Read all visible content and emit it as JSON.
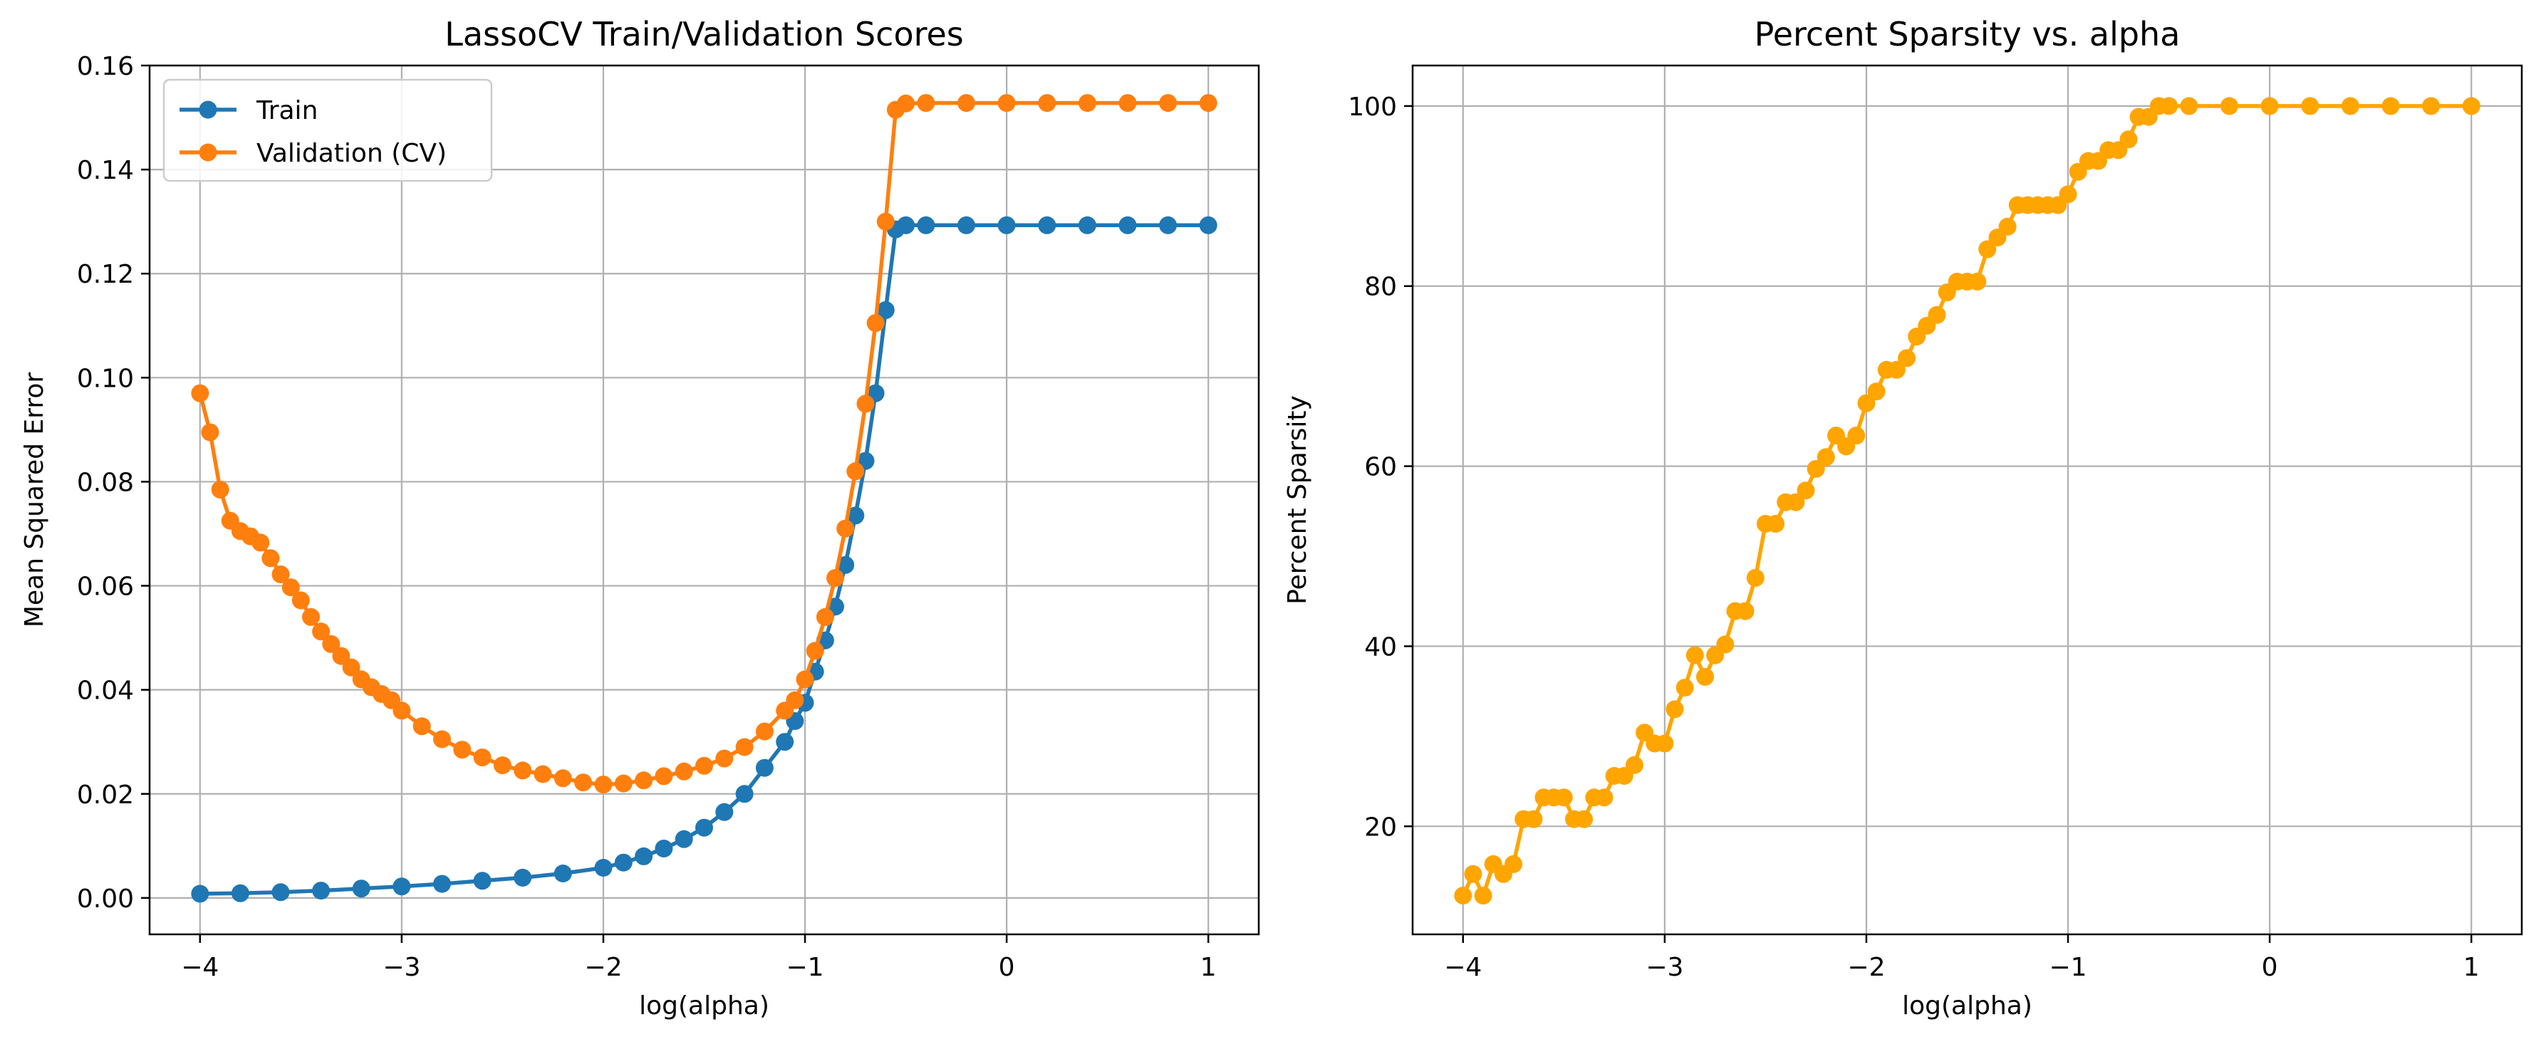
{
  "chart_data": [
    {
      "type": "line",
      "title": "LassoCV Train/Validation Scores",
      "xlabel": "log(alpha)",
      "ylabel": "Mean Squared Error",
      "xlim": [
        -4.25,
        1.25
      ],
      "ylim": [
        -0.007,
        0.16
      ],
      "xticks": [
        -4,
        -3,
        -2,
        -1,
        0,
        1
      ],
      "xtick_labels": [
        "−4",
        "−3",
        "−2",
        "−1",
        "0",
        "1"
      ],
      "yticks": [
        0.0,
        0.02,
        0.04,
        0.06,
        0.08,
        0.1,
        0.12,
        0.14,
        0.16
      ],
      "ytick_labels": [
        "0.00",
        "0.02",
        "0.04",
        "0.06",
        "0.08",
        "0.10",
        "0.12",
        "0.14",
        "0.16"
      ],
      "grid": true,
      "legend_position": "upper-left",
      "series": [
        {
          "name": "Train",
          "color": "#1f77b4",
          "marker": "circle",
          "points": [
            [
              -4.0,
              0.0008
            ],
            [
              -3.8,
              0.0009
            ],
            [
              -3.6,
              0.0011
            ],
            [
              -3.4,
              0.0014
            ],
            [
              -3.2,
              0.0018
            ],
            [
              -3.0,
              0.0022
            ],
            [
              -2.8,
              0.0027
            ],
            [
              -2.6,
              0.0033
            ],
            [
              -2.4,
              0.0039
            ],
            [
              -2.2,
              0.0047
            ],
            [
              -2.0,
              0.0058
            ],
            [
              -1.9,
              0.0068
            ],
            [
              -1.8,
              0.008
            ],
            [
              -1.7,
              0.0095
            ],
            [
              -1.6,
              0.0113
            ],
            [
              -1.5,
              0.0135
            ],
            [
              -1.4,
              0.0165
            ],
            [
              -1.3,
              0.02
            ],
            [
              -1.2,
              0.025
            ],
            [
              -1.1,
              0.03
            ],
            [
              -1.05,
              0.034
            ],
            [
              -1.0,
              0.0375
            ],
            [
              -0.95,
              0.0435
            ],
            [
              -0.9,
              0.0495
            ],
            [
              -0.85,
              0.056
            ],
            [
              -0.8,
              0.064
            ],
            [
              -0.75,
              0.0735
            ],
            [
              -0.7,
              0.084
            ],
            [
              -0.65,
              0.097
            ],
            [
              -0.6,
              0.113
            ],
            [
              -0.55,
              0.1285
            ],
            [
              -0.5,
              0.1293
            ],
            [
              -0.4,
              0.1293
            ],
            [
              -0.2,
              0.1293
            ],
            [
              0.0,
              0.1293
            ],
            [
              0.2,
              0.1293
            ],
            [
              0.4,
              0.1293
            ],
            [
              0.6,
              0.1293
            ],
            [
              0.8,
              0.1293
            ],
            [
              1.0,
              0.1293
            ]
          ]
        },
        {
          "name": "Validation (CV)",
          "color": "#ff7f0e",
          "marker": "circle",
          "points": [
            [
              -4.0,
              0.097
            ],
            [
              -3.95,
              0.0895
            ],
            [
              -3.9,
              0.0785
            ],
            [
              -3.85,
              0.0725
            ],
            [
              -3.8,
              0.0705
            ],
            [
              -3.75,
              0.0695
            ],
            [
              -3.7,
              0.0683
            ],
            [
              -3.65,
              0.0653
            ],
            [
              -3.6,
              0.0622
            ],
            [
              -3.55,
              0.0597
            ],
            [
              -3.5,
              0.0572
            ],
            [
              -3.45,
              0.054
            ],
            [
              -3.4,
              0.0512
            ],
            [
              -3.35,
              0.0488
            ],
            [
              -3.3,
              0.0465
            ],
            [
              -3.25,
              0.0443
            ],
            [
              -3.2,
              0.042
            ],
            [
              -3.15,
              0.0405
            ],
            [
              -3.1,
              0.0392
            ],
            [
              -3.05,
              0.038
            ],
            [
              -3.0,
              0.036
            ],
            [
              -2.9,
              0.033
            ],
            [
              -2.8,
              0.0305
            ],
            [
              -2.7,
              0.0285
            ],
            [
              -2.6,
              0.027
            ],
            [
              -2.5,
              0.0255
            ],
            [
              -2.4,
              0.0245
            ],
            [
              -2.3,
              0.0238
            ],
            [
              -2.2,
              0.023
            ],
            [
              -2.1,
              0.0222
            ],
            [
              -2.0,
              0.0218
            ],
            [
              -1.9,
              0.022
            ],
            [
              -1.8,
              0.0226
            ],
            [
              -1.7,
              0.0234
            ],
            [
              -1.6,
              0.0243
            ],
            [
              -1.5,
              0.0254
            ],
            [
              -1.4,
              0.0268
            ],
            [
              -1.3,
              0.029
            ],
            [
              -1.2,
              0.032
            ],
            [
              -1.1,
              0.036
            ],
            [
              -1.05,
              0.038
            ],
            [
              -1.0,
              0.042
            ],
            [
              -0.95,
              0.0475
            ],
            [
              -0.9,
              0.054
            ],
            [
              -0.85,
              0.0615
            ],
            [
              -0.8,
              0.071
            ],
            [
              -0.75,
              0.082
            ],
            [
              -0.7,
              0.095
            ],
            [
              -0.65,
              0.1105
            ],
            [
              -0.6,
              0.13
            ],
            [
              -0.55,
              0.1515
            ],
            [
              -0.5,
              0.1527
            ],
            [
              -0.4,
              0.1528
            ],
            [
              -0.2,
              0.1528
            ],
            [
              0.0,
              0.1528
            ],
            [
              0.2,
              0.1528
            ],
            [
              0.4,
              0.1528
            ],
            [
              0.6,
              0.1528
            ],
            [
              0.8,
              0.1528
            ],
            [
              1.0,
              0.1528
            ]
          ]
        }
      ]
    },
    {
      "type": "line",
      "title": "Percent Sparsity vs. alpha",
      "xlabel": "log(alpha)",
      "ylabel": "Percent Sparsity",
      "xlim": [
        -4.25,
        1.25
      ],
      "ylim": [
        8,
        104.5
      ],
      "xticks": [
        -4,
        -3,
        -2,
        -1,
        0,
        1
      ],
      "xtick_labels": [
        "−4",
        "−3",
        "−2",
        "−1",
        "0",
        "1"
      ],
      "yticks": [
        20,
        40,
        60,
        80,
        100
      ],
      "ytick_labels": [
        "20",
        "40",
        "60",
        "80",
        "100"
      ],
      "grid": true,
      "series": [
        {
          "color": "#ffa500",
          "marker": "circle",
          "points": [
            [
              -4.0,
              12.3
            ],
            [
              -3.95,
              14.7
            ],
            [
              -3.9,
              12.3
            ],
            [
              -3.85,
              15.8
            ],
            [
              -3.8,
              14.7
            ],
            [
              -3.75,
              15.8
            ],
            [
              -3.7,
              20.8
            ],
            [
              -3.65,
              20.8
            ],
            [
              -3.6,
              23.2
            ],
            [
              -3.55,
              23.2
            ],
            [
              -3.5,
              23.2
            ],
            [
              -3.45,
              20.8
            ],
            [
              -3.4,
              20.8
            ],
            [
              -3.35,
              23.2
            ],
            [
              -3.3,
              23.2
            ],
            [
              -3.25,
              25.6
            ],
            [
              -3.2,
              25.6
            ],
            [
              -3.15,
              26.8
            ],
            [
              -3.1,
              30.4
            ],
            [
              -3.05,
              29.2
            ],
            [
              -3.0,
              29.2
            ],
            [
              -2.95,
              33.0
            ],
            [
              -2.9,
              35.4
            ],
            [
              -2.85,
              39.0
            ],
            [
              -2.8,
              36.6
            ],
            [
              -2.75,
              39.0
            ],
            [
              -2.7,
              40.2
            ],
            [
              -2.65,
              43.9
            ],
            [
              -2.6,
              43.9
            ],
            [
              -2.55,
              47.6
            ],
            [
              -2.5,
              53.6
            ],
            [
              -2.45,
              53.6
            ],
            [
              -2.4,
              56.0
            ],
            [
              -2.35,
              56.0
            ],
            [
              -2.3,
              57.3
            ],
            [
              -2.25,
              59.7
            ],
            [
              -2.2,
              61.0
            ],
            [
              -2.15,
              63.4
            ],
            [
              -2.1,
              62.2
            ],
            [
              -2.05,
              63.4
            ],
            [
              -2.0,
              67.0
            ],
            [
              -1.95,
              68.3
            ],
            [
              -1.9,
              70.7
            ],
            [
              -1.85,
              70.7
            ],
            [
              -1.8,
              72.0
            ],
            [
              -1.75,
              74.4
            ],
            [
              -1.7,
              75.6
            ],
            [
              -1.65,
              76.8
            ],
            [
              -1.6,
              79.3
            ],
            [
              -1.55,
              80.5
            ],
            [
              -1.5,
              80.5
            ],
            [
              -1.45,
              80.5
            ],
            [
              -1.4,
              84.1
            ],
            [
              -1.35,
              85.4
            ],
            [
              -1.3,
              86.6
            ],
            [
              -1.25,
              89.0
            ],
            [
              -1.2,
              89.0
            ],
            [
              -1.15,
              89.0
            ],
            [
              -1.1,
              89.0
            ],
            [
              -1.05,
              89.0
            ],
            [
              -1.0,
              90.2
            ],
            [
              -0.95,
              92.7
            ],
            [
              -0.9,
              93.9
            ],
            [
              -0.85,
              93.9
            ],
            [
              -0.8,
              95.1
            ],
            [
              -0.75,
              95.1
            ],
            [
              -0.7,
              96.3
            ],
            [
              -0.65,
              98.8
            ],
            [
              -0.6,
              98.8
            ],
            [
              -0.55,
              100.0
            ],
            [
              -0.5,
              100.0
            ],
            [
              -0.4,
              100.0
            ],
            [
              -0.2,
              100.0
            ],
            [
              0.0,
              100.0
            ],
            [
              0.2,
              100.0
            ],
            [
              0.4,
              100.0
            ],
            [
              0.6,
              100.0
            ],
            [
              0.8,
              100.0
            ],
            [
              1.0,
              100.0
            ]
          ]
        }
      ]
    }
  ]
}
